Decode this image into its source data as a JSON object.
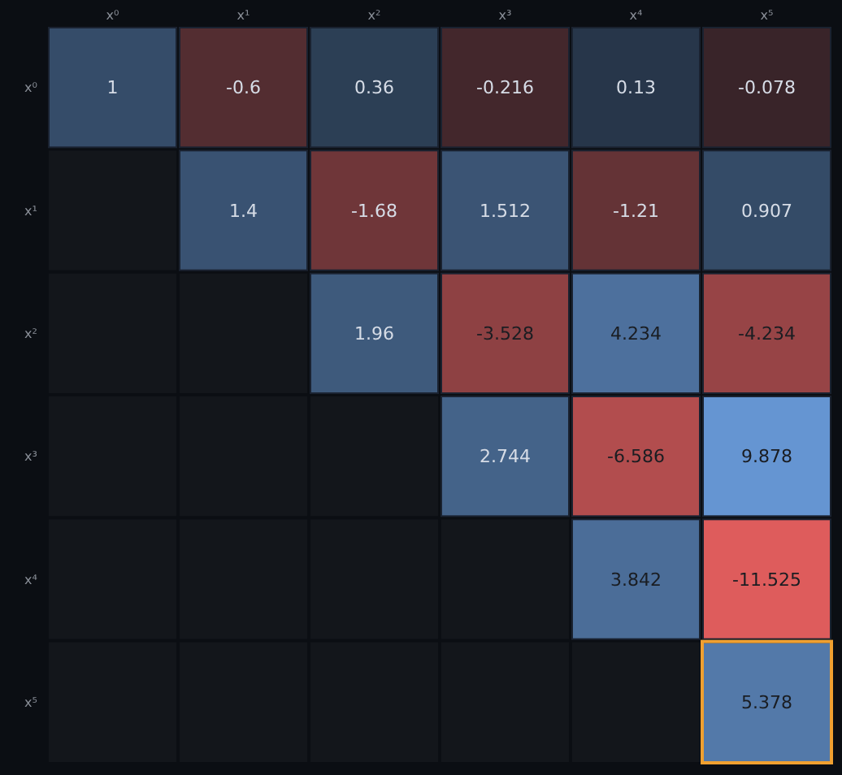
{
  "chart_data": {
    "type": "heatmap",
    "categories": [
      "x⁰",
      "x¹",
      "x²",
      "x³",
      "x⁴",
      "x⁵"
    ],
    "y_categories": [
      "x⁰",
      "x¹",
      "x²",
      "x³",
      "x⁴",
      "x⁵"
    ],
    "cells": [
      [
        1,
        -0.6,
        0.36,
        -0.216,
        0.13,
        -0.078
      ],
      [
        null,
        1.4,
        -1.68,
        1.512,
        -1.21,
        0.907
      ],
      [
        null,
        null,
        1.96,
        -3.528,
        4.234,
        -4.234
      ],
      [
        null,
        null,
        null,
        2.744,
        -6.586,
        9.878
      ],
      [
        null,
        null,
        null,
        null,
        3.842,
        -11.525
      ],
      [
        null,
        null,
        null,
        null,
        null,
        5.378
      ]
    ],
    "data_labels": true
  }
}
